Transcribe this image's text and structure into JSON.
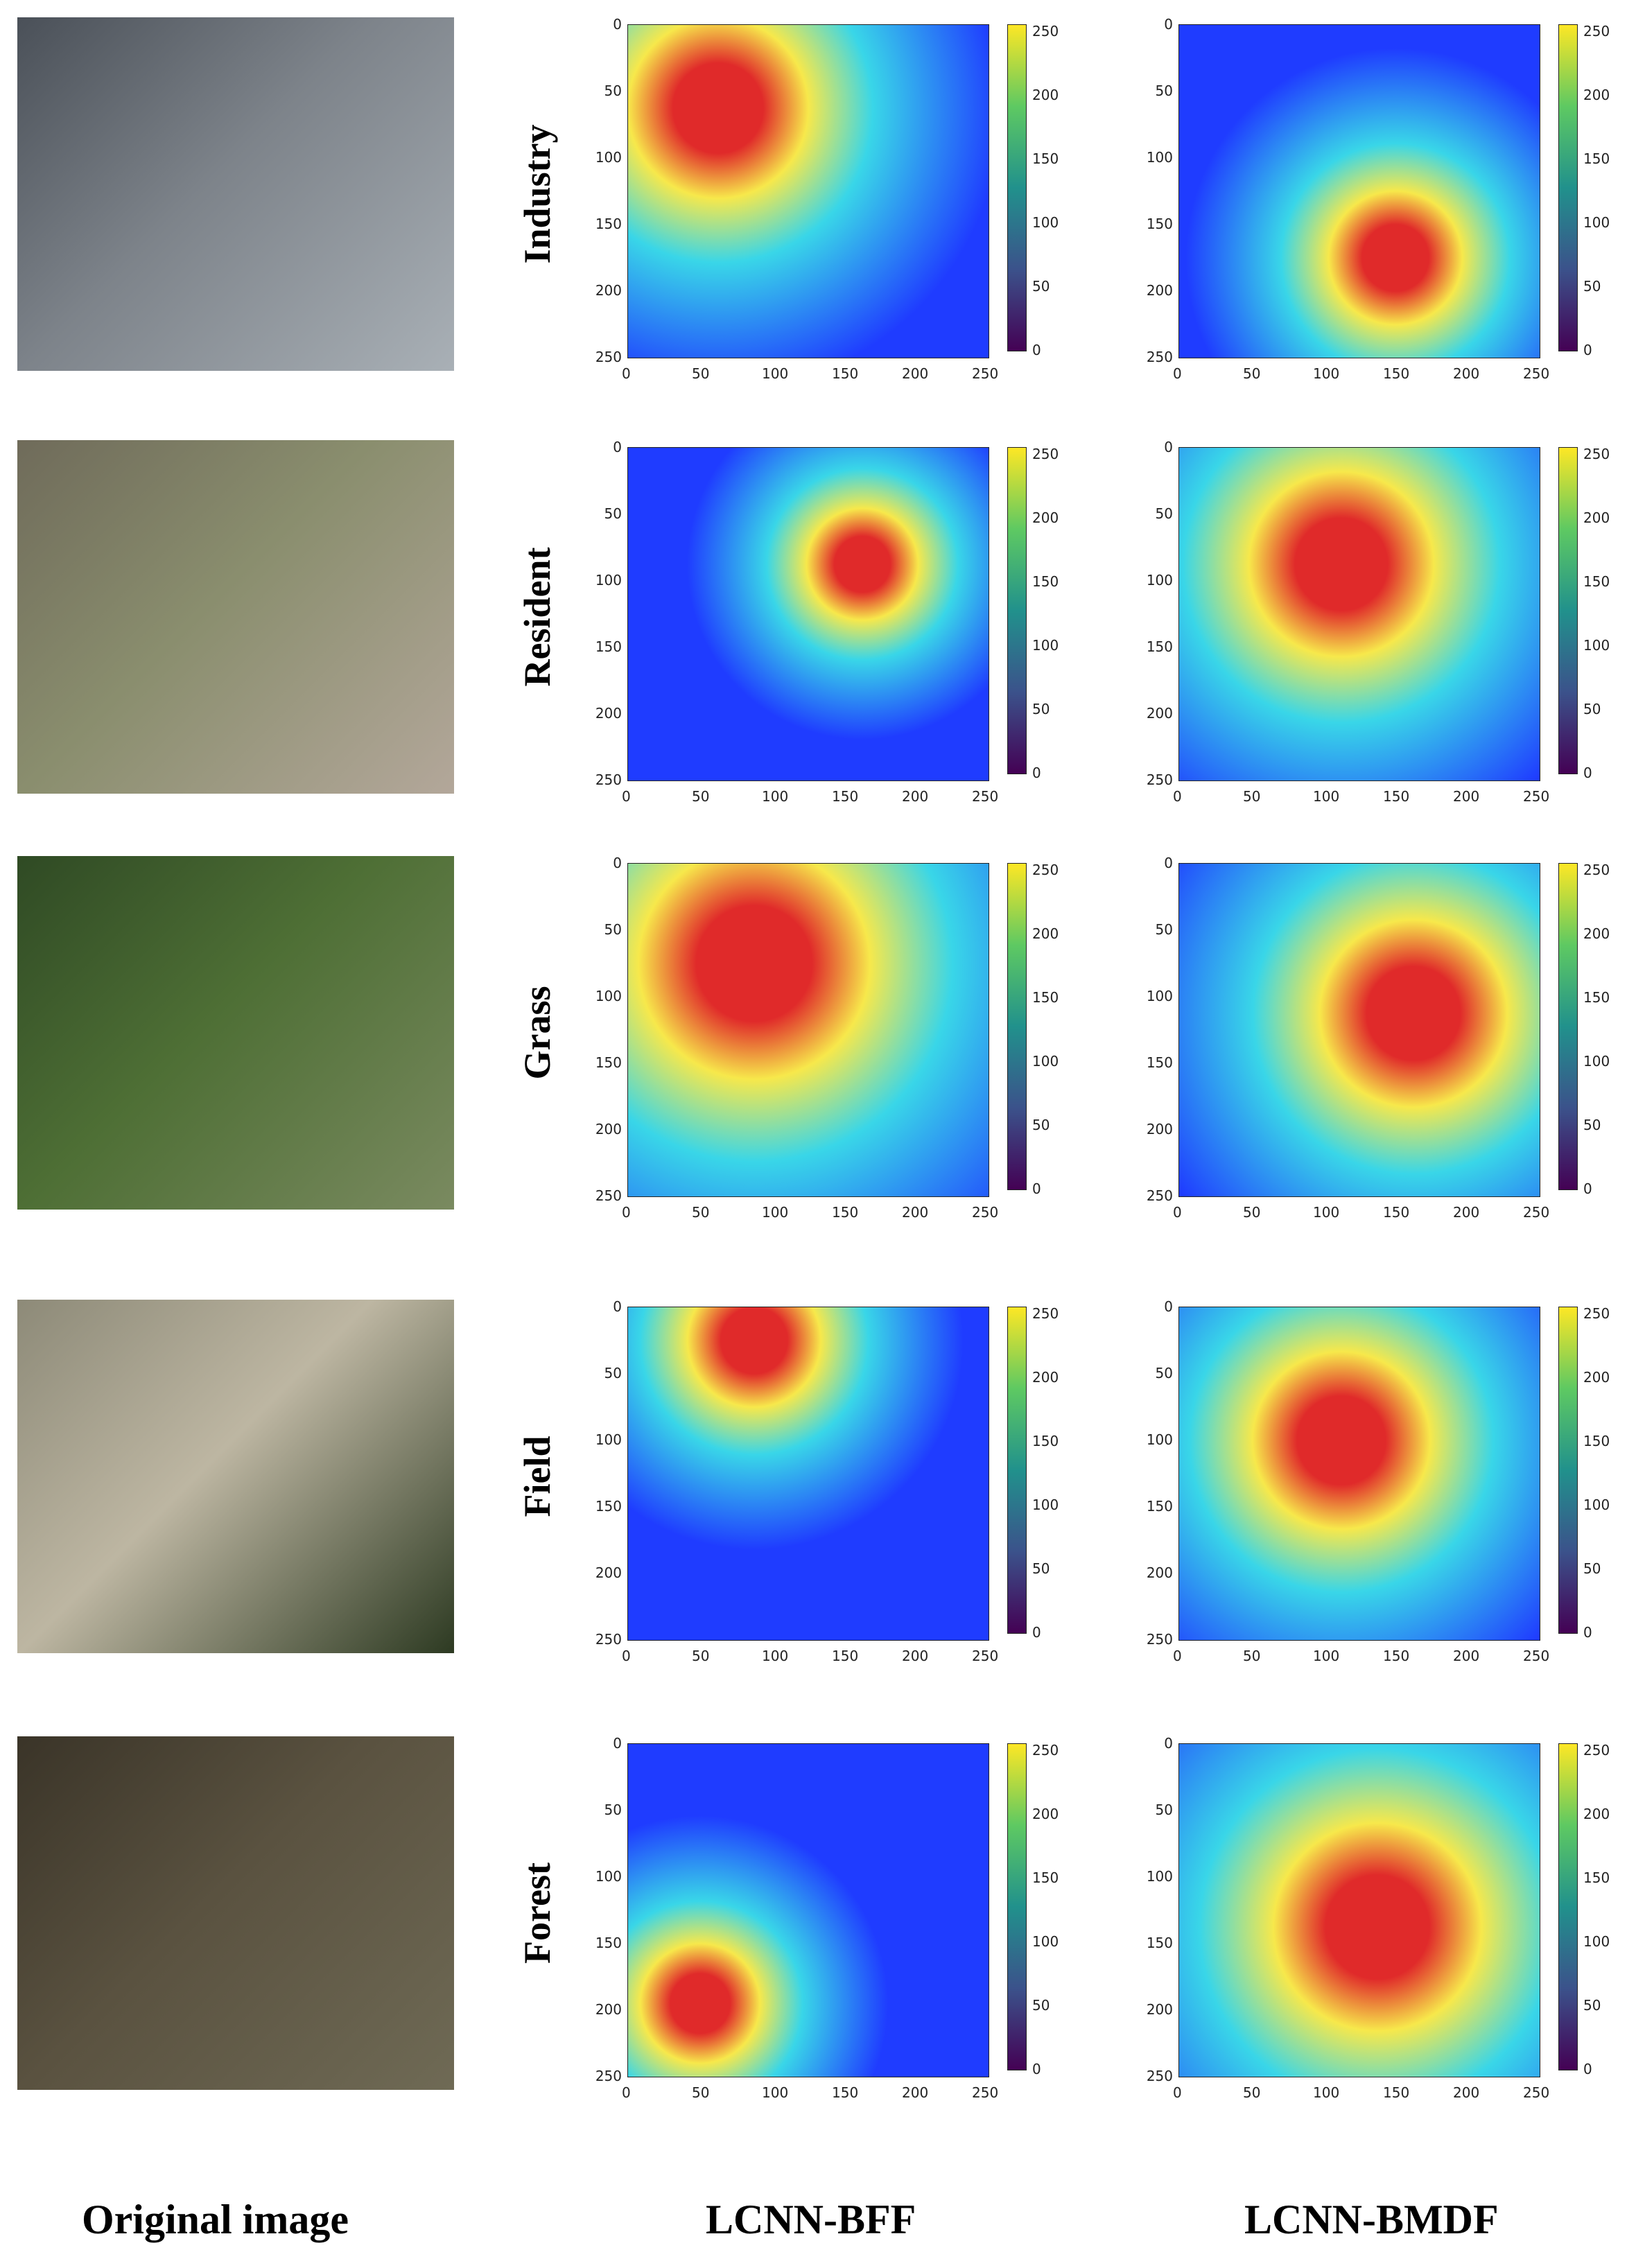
{
  "column_labels": [
    "Original image",
    "LCNN-BFF",
    "LCNN-BMDF"
  ],
  "axis_ticks": [
    "0",
    "50",
    "100",
    "150",
    "200",
    "250"
  ],
  "colorbar_ticks": [
    "0",
    "50",
    "100",
    "150",
    "200",
    "250"
  ],
  "rows": [
    {
      "label": "Industry",
      "orig": [
        "#4a5058",
        "#7d838a",
        "#a9b0b6"
      ],
      "bff_hot": {
        "x": 25,
        "y": 25,
        "r": 35
      },
      "bmdf_hot": {
        "x": 60,
        "y": 70,
        "r": 30
      }
    },
    {
      "label": "Resident",
      "orig": [
        "#6f6b5a",
        "#8a8e6e",
        "#b3a79a"
      ],
      "bff_hot": {
        "x": 65,
        "y": 35,
        "r": 25
      },
      "bmdf_hot": {
        "x": 45,
        "y": 35,
        "r": 45
      }
    },
    {
      "label": "Grass",
      "orig": [
        "#2f4a24",
        "#4e6f35",
        "#7a8a60"
      ],
      "bff_hot": {
        "x": 35,
        "y": 30,
        "r": 50
      },
      "bmdf_hot": {
        "x": 65,
        "y": 45,
        "r": 45
      }
    },
    {
      "label": "Field",
      "orig": [
        "#8d8a78",
        "#bdb6a2",
        "#2d3a22"
      ],
      "bff_hot": {
        "x": 35,
        "y": 10,
        "r": 25
      },
      "bmdf_hot": {
        "x": 45,
        "y": 40,
        "r": 45
      }
    },
    {
      "label": "Forest",
      "orig": [
        "#3a3428",
        "#5a5240",
        "#6f6a55"
      ],
      "bff_hot": {
        "x": 20,
        "y": 78,
        "r": 22
      },
      "bmdf_hot": {
        "x": 55,
        "y": 55,
        "r": 55
      }
    }
  ],
  "palette": {
    "jet_blue": "#1f3cff",
    "jet_cyan": "#39d6e8",
    "jet_yellow": "#f7e84b",
    "jet_red": "#e02a2a"
  }
}
